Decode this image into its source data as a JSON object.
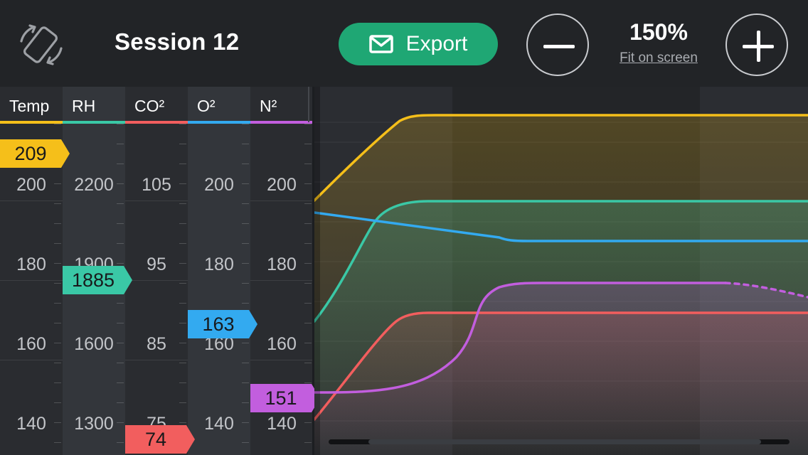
{
  "header": {
    "title": "Session 12",
    "export_label": "Export",
    "zoom_level": "150%",
    "fit_label": "Fit on screen"
  },
  "axes": [
    {
      "name": "Temp",
      "color": "#f5bf1a",
      "ticks": [
        "200",
        "180",
        "160",
        "140"
      ],
      "marker": "209"
    },
    {
      "name": "RH",
      "color": "#3ac8a6",
      "ticks": [
        "2200",
        "1900",
        "1600",
        "1300"
      ],
      "marker": "1885"
    },
    {
      "name": "CO²",
      "color": "#f25e5e",
      "ticks": [
        "105",
        "95",
        "85",
        "75"
      ],
      "marker": "74"
    },
    {
      "name": "O²",
      "color": "#33aaf0",
      "ticks": [
        "200",
        "180",
        "160",
        "140"
      ],
      "marker": "163"
    },
    {
      "name": "N²",
      "color": "#c25ede",
      "ticks": [
        "200",
        "180",
        "160",
        "140"
      ],
      "marker": "151"
    }
  ],
  "icons": {
    "rotate": "rotate-device-icon",
    "export": "mail-icon",
    "zoom_out": "minus-icon",
    "zoom_in": "plus-icon"
  }
}
